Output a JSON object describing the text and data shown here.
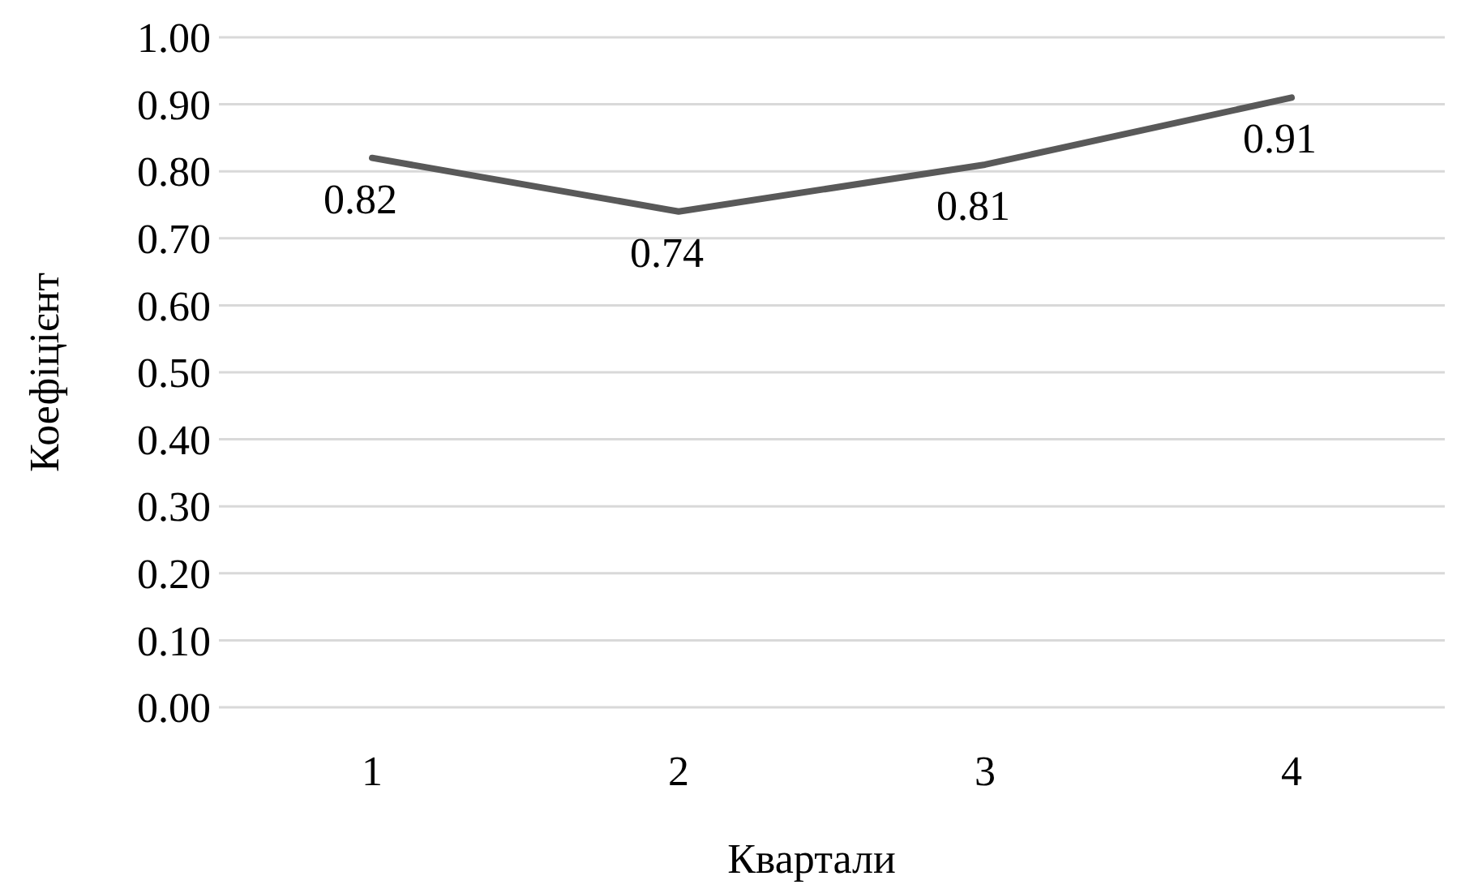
{
  "chart_data": {
    "type": "line",
    "xlabel": "Квартали",
    "ylabel": "Коефіцієнт",
    "categories": [
      "1",
      "2",
      "3",
      "4"
    ],
    "series": [
      {
        "color": "#595959",
        "values": [
          0.82,
          0.74,
          0.81,
          0.91
        ]
      }
    ],
    "ylim": [
      0,
      1
    ],
    "yticks": [
      {
        "value": 0,
        "label": "0.00"
      },
      {
        "value": 0.1,
        "label": "0.10"
      },
      {
        "value": 0.2,
        "label": "0.20"
      },
      {
        "value": 0.3,
        "label": "0.30"
      },
      {
        "value": 0.4,
        "label": "0.40"
      },
      {
        "value": 0.5,
        "label": "0.50"
      },
      {
        "value": 0.6,
        "label": "0.60"
      },
      {
        "value": 0.7,
        "label": "0.70"
      },
      {
        "value": 0.8,
        "label": "0.80"
      },
      {
        "value": 0.9,
        "label": "0.90"
      },
      {
        "value": 1,
        "label": "1.00"
      }
    ],
    "grid": "y",
    "data_labels": true,
    "marker": "none",
    "line_style": "solid"
  }
}
